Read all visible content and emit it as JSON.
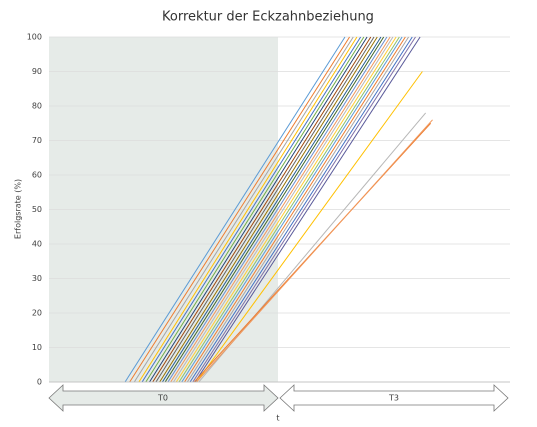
{
  "chart_data": {
    "type": "line",
    "title": "Korrektur der Eckzahnbeziehung",
    "y_label": "Erfolgsrate (%)",
    "x_label": "t",
    "phases": [
      "T0",
      "T3"
    ],
    "xlim": [
      0,
      100
    ],
    "ylim": [
      0,
      100
    ],
    "yticks": [
      0,
      10,
      20,
      30,
      40,
      50,
      60,
      70,
      80,
      90,
      100
    ],
    "grid": true,
    "series": [
      {
        "color": "#5b9bd5",
        "x": [
          16.5,
          64.2
        ],
        "values": [
          0,
          100
        ]
      },
      {
        "color": "#ed7d31",
        "x": [
          17.5,
          65.2
        ],
        "values": [
          0,
          100
        ]
      },
      {
        "color": "#a5a5a5",
        "x": [
          18.5,
          66.0
        ],
        "values": [
          0,
          100
        ]
      },
      {
        "color": "#ffc000",
        "x": [
          19.5,
          66.8
        ],
        "values": [
          0,
          100
        ]
      },
      {
        "color": "#4472c4",
        "x": [
          20.2,
          67.6
        ],
        "values": [
          0,
          100
        ]
      },
      {
        "color": "#70ad47",
        "x": [
          21.0,
          68.3
        ],
        "values": [
          0,
          100
        ]
      },
      {
        "color": "#264478",
        "x": [
          21.8,
          69.0
        ],
        "values": [
          0,
          100
        ]
      },
      {
        "color": "#9e480e",
        "x": [
          22.5,
          69.8
        ],
        "values": [
          0,
          100
        ]
      },
      {
        "color": "#636363",
        "x": [
          23.2,
          70.5
        ],
        "values": [
          0,
          100
        ]
      },
      {
        "color": "#997300",
        "x": [
          24.0,
          71.2
        ],
        "values": [
          0,
          100
        ]
      },
      {
        "color": "#255e91",
        "x": [
          24.6,
          72.0
        ],
        "values": [
          0,
          100
        ]
      },
      {
        "color": "#43682b",
        "x": [
          25.2,
          72.6
        ],
        "values": [
          0,
          100
        ]
      },
      {
        "color": "#698ed0",
        "x": [
          25.8,
          73.3
        ],
        "values": [
          0,
          100
        ]
      },
      {
        "color": "#f1975a",
        "x": [
          26.4,
          74.0
        ],
        "values": [
          0,
          100
        ]
      },
      {
        "color": "#b7b7b7",
        "x": [
          27.0,
          74.6
        ],
        "values": [
          0,
          100
        ]
      },
      {
        "color": "#ffcd33",
        "x": [
          27.6,
          75.3
        ],
        "values": [
          0,
          100
        ]
      },
      {
        "color": "#8cc168",
        "x": [
          28.2,
          76.0
        ],
        "values": [
          0,
          100
        ]
      },
      {
        "color": "#5b9bd5",
        "x": [
          28.8,
          76.6
        ],
        "values": [
          0,
          100
        ]
      },
      {
        "color": "#ed7d31",
        "x": [
          29.4,
          77.3
        ],
        "values": [
          0,
          100
        ]
      },
      {
        "color": "#a5a5a5",
        "x": [
          30.0,
          78.0
        ],
        "values": [
          0,
          100
        ]
      },
      {
        "color": "#4472c4",
        "x": [
          30.6,
          78.8
        ],
        "values": [
          0,
          100
        ]
      },
      {
        "color": "#7f6fa8",
        "x": [
          31.2,
          79.5
        ],
        "values": [
          0,
          100
        ]
      },
      {
        "color": "#5a5a9a",
        "x": [
          31.7,
          80.5
        ],
        "values": [
          0,
          100
        ]
      },
      {
        "color": "#b7b7b7",
        "x": [
          32.5,
          81.7
        ],
        "values": [
          0,
          78
        ]
      },
      {
        "color": "#ffc000",
        "x": [
          32.0,
          81.0
        ],
        "values": [
          0,
          90
        ]
      },
      {
        "color": "#ed7d31",
        "x": [
          31.5,
          82.8
        ],
        "values": [
          0,
          75
        ]
      },
      {
        "color": "#f1975a",
        "x": [
          32.0,
          83.2
        ],
        "values": [
          0,
          76
        ]
      }
    ]
  }
}
